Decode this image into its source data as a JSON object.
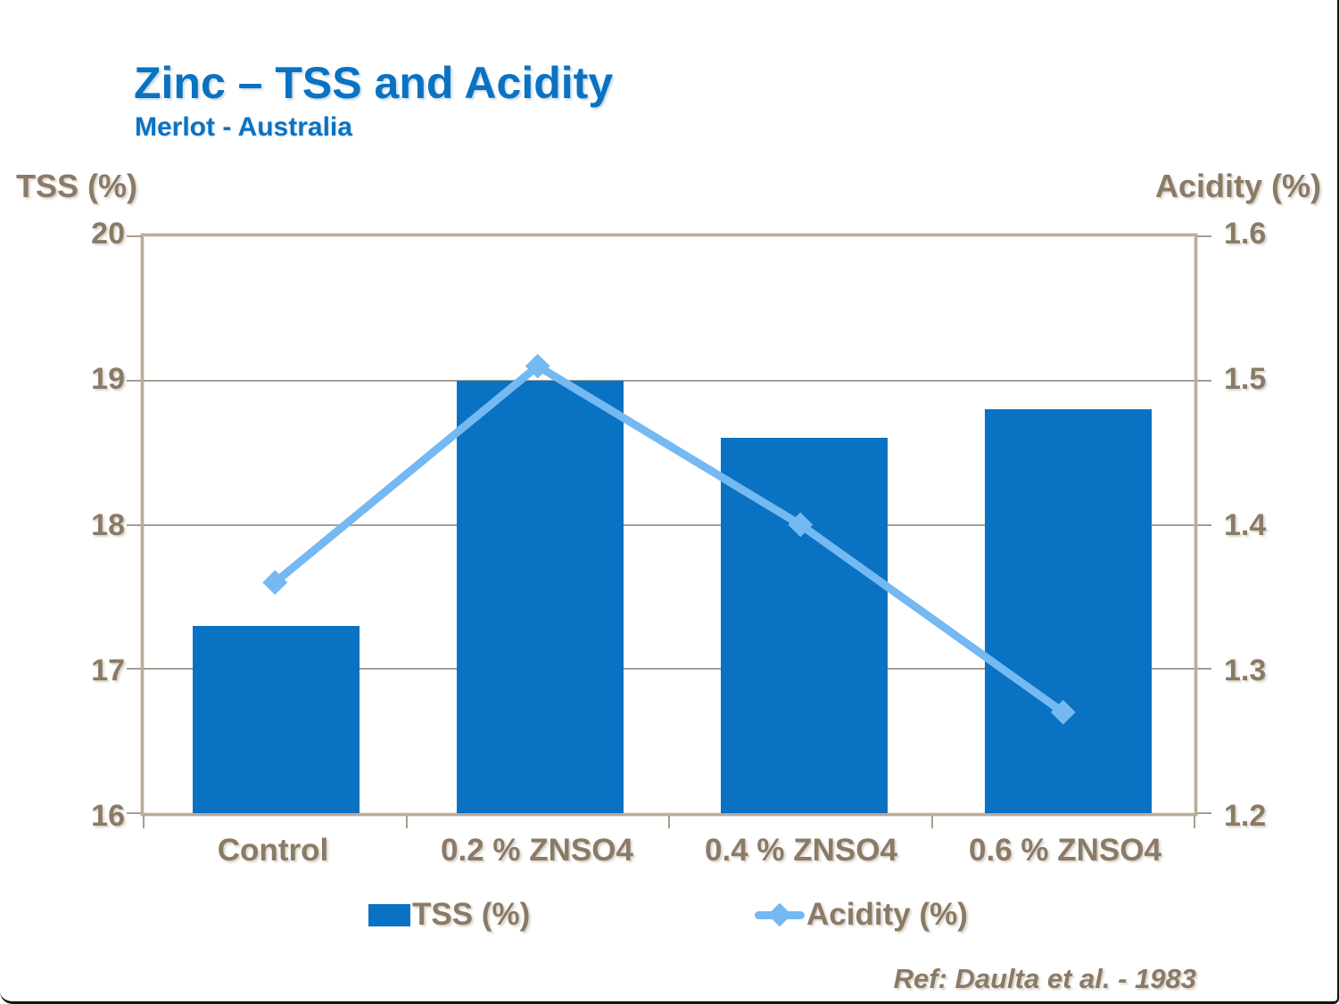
{
  "slide": {
    "title": "Zinc – TSS and Acidity",
    "subtitle": "Merlot - Australia",
    "reference": "Ref: Daulta et al. - 1983"
  },
  "colors": {
    "title_blue": "#0a72c2",
    "bar_blue": "#0a72c2",
    "line_blue": "#74b9f2",
    "axis_text_brown": "#8a7a66",
    "gridline_gray": "#a8a096",
    "plot_border": "#b9ad9d"
  },
  "chart_data": {
    "type": "bar",
    "subtype": "bar-and-line-combo",
    "categories": [
      "Control",
      "0.2 % ZNSO4",
      "0.4 % ZNSO4",
      "0.6 % ZNSO4"
    ],
    "series": [
      {
        "name": "TSS (%)",
        "type": "bar",
        "axis": "left",
        "values": [
          17.3,
          19.0,
          18.6,
          18.8
        ]
      },
      {
        "name": "Acidity (%)",
        "type": "line",
        "axis": "right",
        "values": [
          1.36,
          1.51,
          1.4,
          1.27
        ]
      }
    ],
    "left_axis": {
      "label": "TSS (%)",
      "min": 16,
      "max": 20,
      "ticks": [
        "20",
        "19",
        "18",
        "17",
        "16"
      ]
    },
    "right_axis": {
      "label": "Acidity (%)",
      "min": 1.2,
      "max": 1.6,
      "ticks": [
        "1.6",
        "1.5",
        "1.4",
        "1.3",
        "1.2"
      ]
    },
    "legend": [
      "TSS (%)",
      "Acidity (%)"
    ],
    "legend_position": "bottom",
    "grid": true
  }
}
